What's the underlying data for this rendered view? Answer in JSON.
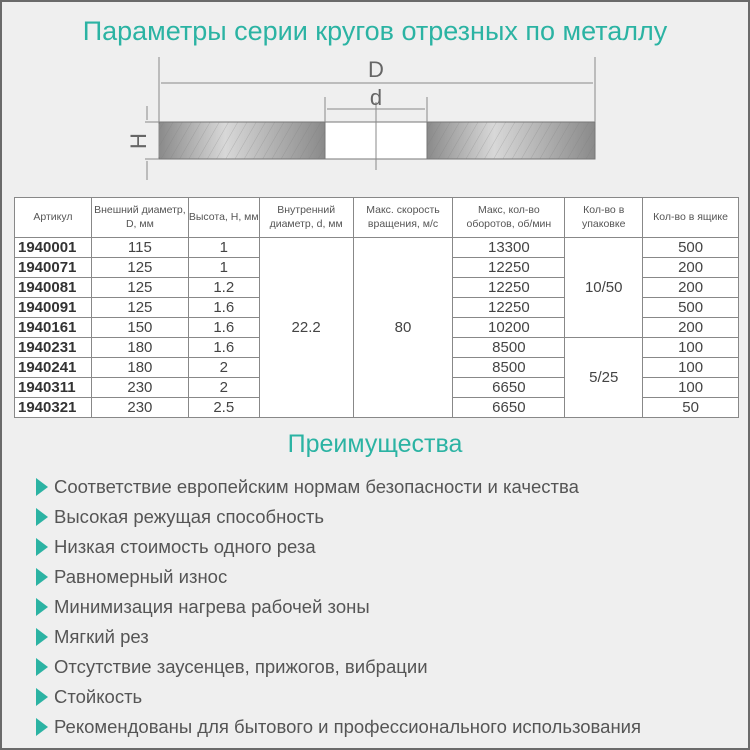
{
  "title": "Параметры серии кругов отрезных по металлу",
  "diagram": {
    "D": "D",
    "d": "d",
    "H": "H"
  },
  "table": {
    "headers": [
      "Артикул",
      "Внешний диаметр, D, мм",
      "Высота, Н, мм",
      "Внутренний диаметр, d, мм",
      "Макс. скорость вращения, м/с",
      "Макс, кол-во оборотов, об/мин",
      "Кол-во в упаковке",
      "Кол-во в ящике"
    ],
    "rows": [
      [
        "1940001",
        "115",
        "1",
        "13300",
        "500"
      ],
      [
        "1940071",
        "125",
        "1",
        "12250",
        "200"
      ],
      [
        "1940081",
        "125",
        "1.2",
        "12250",
        "200"
      ],
      [
        "1940091",
        "125",
        "1.6",
        "12250",
        "500"
      ],
      [
        "1940161",
        "150",
        "1.6",
        "10200",
        "200"
      ],
      [
        "1940231",
        "180",
        "1.6",
        "8500",
        "100"
      ],
      [
        "1940241",
        "180",
        "2",
        "8500",
        "100"
      ],
      [
        "1940311",
        "230",
        "2",
        "6650",
        "100"
      ],
      [
        "1940321",
        "230",
        "2.5",
        "6650",
        "50"
      ]
    ],
    "inner_diameter": "22.2",
    "max_speed": "80",
    "pack_a": "10/50",
    "pack_b": "5/25"
  },
  "advantages_title": "Преимущества",
  "advantages": [
    "Соответствие европейским нормам безопасности и качества",
    "Высокая режущая способность",
    "Низкая стоимость одного реза",
    "Равномерный износ",
    "Минимизация нагрева рабочей зоны",
    "Мягкий рез",
    "Отсутствие заусенцев, прижогов, вибрации",
    "Стойкость",
    "Рекомендованы для бытового и профессионального использования"
  ],
  "colors": {
    "accent": "#2bb3a3",
    "background": "#efefef"
  }
}
